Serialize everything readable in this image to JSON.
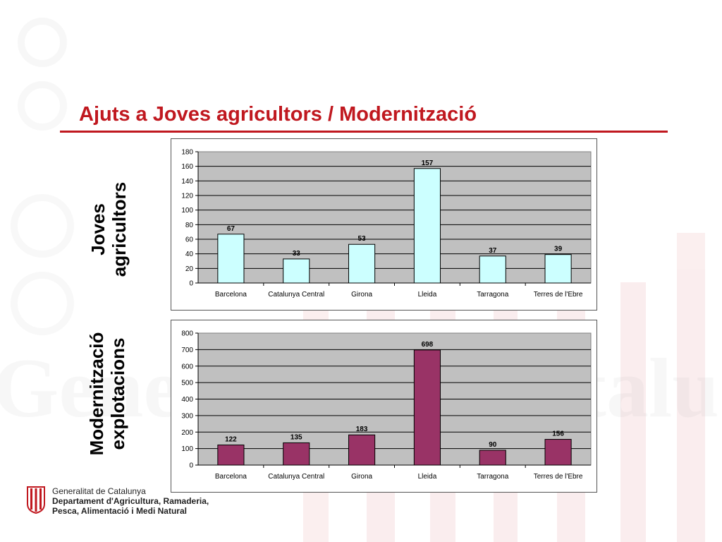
{
  "slide": {
    "title": "Ajuts a Joves agricultors / Modernització",
    "accent_color": "#c0181f"
  },
  "labels": {
    "top": [
      "Joves",
      "agricultors"
    ],
    "bottom": [
      "Modernització",
      "explotacions"
    ]
  },
  "footer": {
    "line1": "Generalitat de Catalunya",
    "line2": "Departament d'Agricultura, Ramaderia,",
    "line3": "Pesca, Alimentació i Medi Natural",
    "logo_icon": "generalitat-stripes-icon"
  },
  "chart_data": [
    {
      "type": "bar",
      "categories": [
        "Barcelona",
        "Catalunya Central",
        "Girona",
        "Lleida",
        "Tarragona",
        "Terres de l'Ebre"
      ],
      "values": [
        67,
        33,
        53,
        157,
        37,
        39
      ],
      "ylim": [
        0,
        180
      ],
      "ytick_step": 20,
      "bar_color": "#ccffff",
      "plot_bg": "#c0c0c0",
      "grid": true,
      "data_labels": true
    },
    {
      "type": "bar",
      "categories": [
        "Barcelona",
        "Catalunya Central",
        "Girona",
        "Lleida",
        "Tarragona",
        "Terres de l'Ebre"
      ],
      "values": [
        122,
        135,
        183,
        698,
        90,
        156
      ],
      "ylim": [
        0,
        800
      ],
      "ytick_step": 100,
      "bar_color": "#993366",
      "plot_bg": "#c0c0c0",
      "grid": true,
      "data_labels": true
    }
  ]
}
